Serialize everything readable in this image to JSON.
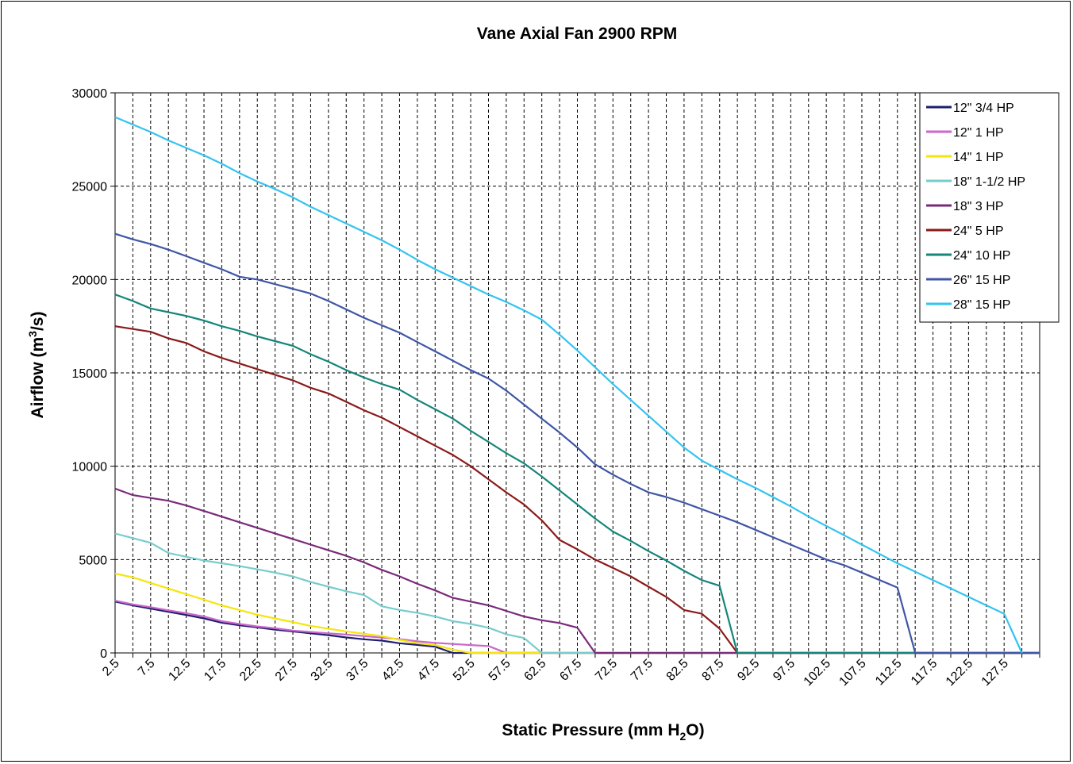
{
  "chart_data": {
    "type": "line",
    "title": "Vane Axial Fan 2900 RPM",
    "xlabel": {
      "prefix": "Static Pressure (mm H",
      "sub": "2",
      "suffix": "O)"
    },
    "ylabel": {
      "prefix": "Airflow (m",
      "sup": "3",
      "suffix": "/s)"
    },
    "ylim": [
      0,
      30000
    ],
    "y_ticks": [
      "0",
      "5000",
      "10000",
      "15000",
      "20000",
      "25000",
      "30000"
    ],
    "x_tick_labels": [
      "2.5",
      "7.5",
      "12.5",
      "17.5",
      "22.5",
      "27.5",
      "32.5",
      "37.5",
      "42.5",
      "47.5",
      "52.5",
      "57.5",
      "62.5",
      "67.5",
      "72.5",
      "77.5",
      "82.5",
      "87.5",
      "92.5",
      "97.5",
      "102.5",
      "107.5",
      "112.5",
      "117.5",
      "122.5",
      "127.5"
    ],
    "xlim": [
      2.5,
      132.5
    ],
    "grid": true,
    "legend_position": "top-right",
    "series": [
      {
        "name": "12\" 3/4 HP",
        "color": "#1f1f6e",
        "x": [
          2.5,
          5,
          7.5,
          10,
          12.5,
          15,
          17.5,
          20,
          22.5,
          25,
          27.5,
          30,
          32.5,
          35,
          37.5,
          40,
          42.5,
          45,
          47.5,
          50,
          132.5
        ],
        "y": [
          2750,
          2550,
          2370,
          2200,
          2030,
          1850,
          1620,
          1480,
          1370,
          1250,
          1150,
          1050,
          950,
          830,
          730,
          660,
          520,
          430,
          330,
          0,
          0
        ]
      },
      {
        "name": "12\" 1 HP",
        "color": "#cc66cc",
        "x": [
          2.5,
          5,
          7.5,
          10,
          12.5,
          15,
          17.5,
          20,
          22.5,
          25,
          27.5,
          30,
          32.5,
          35,
          37.5,
          40,
          42.5,
          45,
          47.5,
          50,
          52.5,
          55,
          57.5,
          132.5
        ],
        "y": [
          2800,
          2600,
          2450,
          2280,
          2130,
          1950,
          1700,
          1550,
          1420,
          1320,
          1200,
          1120,
          1050,
          980,
          900,
          820,
          740,
          620,
          540,
          480,
          420,
          370,
          0,
          0
        ]
      },
      {
        "name": "14\" 1 HP",
        "color": "#f5e60a",
        "x": [
          2.5,
          5,
          7.5,
          10,
          12.5,
          15,
          17.5,
          20,
          22.5,
          25,
          27.5,
          30,
          32.5,
          35,
          37.5,
          40,
          42.5,
          45,
          47.5,
          50,
          52.5,
          132.5
        ],
        "y": [
          4250,
          4050,
          3750,
          3450,
          3150,
          2850,
          2550,
          2300,
          2050,
          1850,
          1650,
          1450,
          1300,
          1150,
          1030,
          900,
          700,
          520,
          420,
          180,
          0,
          0
        ]
      },
      {
        "name": "18\" 1-1/2 HP",
        "color": "#77cccc",
        "x": [
          2.5,
          5,
          7.5,
          10,
          12.5,
          15,
          17.5,
          20,
          22.5,
          25,
          27.5,
          30,
          32.5,
          35,
          37.5,
          40,
          42.5,
          45,
          47.5,
          50,
          52.5,
          55,
          57.5,
          60,
          62.5,
          132.5
        ],
        "y": [
          6400,
          6150,
          5900,
          5350,
          5150,
          4950,
          4800,
          4650,
          4480,
          4300,
          4100,
          3800,
          3550,
          3300,
          3100,
          2500,
          2300,
          2150,
          1950,
          1700,
          1550,
          1350,
          1000,
          800,
          0,
          0
        ]
      },
      {
        "name": "18\" 3 HP",
        "color": "#7a2a7a",
        "x": [
          2.5,
          5,
          7.5,
          10,
          12.5,
          15,
          17.5,
          20,
          22.5,
          25,
          27.5,
          30,
          32.5,
          35,
          37.5,
          40,
          42.5,
          45,
          47.5,
          50,
          52.5,
          55,
          57.5,
          60,
          62.5,
          65,
          67.5,
          70,
          132.5
        ],
        "y": [
          8800,
          8450,
          8300,
          8150,
          7900,
          7600,
          7300,
          7000,
          6700,
          6400,
          6100,
          5800,
          5500,
          5200,
          4850,
          4450,
          4100,
          3700,
          3350,
          2950,
          2750,
          2550,
          2250,
          1950,
          1750,
          1600,
          1350,
          0,
          0
        ]
      },
      {
        "name": "24\" 5 HP",
        "color": "#8b1a1a",
        "x": [
          2.5,
          5,
          7.5,
          10,
          12.5,
          15,
          17.5,
          20,
          22.5,
          25,
          27.5,
          30,
          32.5,
          35,
          37.5,
          40,
          42.5,
          45,
          47.5,
          50,
          52.5,
          55,
          57.5,
          60,
          62.5,
          65,
          67.5,
          70,
          72.5,
          75,
          77.5,
          80,
          82.5,
          85,
          87.5,
          90,
          132.5
        ],
        "y": [
          17500,
          17350,
          17200,
          16850,
          16600,
          16150,
          15800,
          15500,
          15200,
          14900,
          14600,
          14200,
          13900,
          13450,
          13000,
          12600,
          12100,
          11600,
          11100,
          10600,
          10000,
          9300,
          8600,
          7950,
          7100,
          6050,
          5550,
          5000,
          4550,
          4100,
          3550,
          3000,
          2300,
          2100,
          1300,
          0,
          0
        ]
      },
      {
        "name": "24\" 10 HP",
        "color": "#14867a",
        "x": [
          2.5,
          5,
          7.5,
          10,
          12.5,
          15,
          17.5,
          20,
          22.5,
          25,
          27.5,
          30,
          32.5,
          35,
          37.5,
          40,
          42.5,
          45,
          47.5,
          50,
          52.5,
          55,
          57.5,
          60,
          62.5,
          65,
          67.5,
          70,
          72.5,
          75,
          77.5,
          80,
          82.5,
          85,
          87.5,
          90,
          92.5,
          132.5
        ],
        "y": [
          19200,
          18850,
          18450,
          18250,
          18050,
          17800,
          17500,
          17250,
          16950,
          16700,
          16450,
          16000,
          15600,
          15150,
          14750,
          14400,
          14100,
          13550,
          13050,
          12550,
          11900,
          11300,
          10700,
          10150,
          9450,
          8700,
          7950,
          7200,
          6500,
          6000,
          5450,
          4950,
          4400,
          3900,
          3600,
          0,
          0,
          0
        ]
      },
      {
        "name": "26\" 15 HP",
        "color": "#3f56a6",
        "x": [
          2.5,
          5,
          7.5,
          10,
          12.5,
          15,
          17.5,
          20,
          22.5,
          25,
          27.5,
          30,
          32.5,
          35,
          37.5,
          40,
          42.5,
          45,
          47.5,
          50,
          52.5,
          55,
          57.5,
          60,
          62.5,
          65,
          67.5,
          70,
          72.5,
          75,
          77.5,
          80,
          82.5,
          85,
          87.5,
          90,
          92.5,
          95,
          97.5,
          100,
          102.5,
          105,
          107.5,
          110,
          112.5,
          115,
          132.5
        ],
        "y": [
          22450,
          22150,
          21900,
          21600,
          21250,
          20900,
          20550,
          20150,
          20000,
          19750,
          19500,
          19250,
          18850,
          18400,
          17950,
          17550,
          17150,
          16650,
          16150,
          15650,
          15150,
          14700,
          14050,
          13300,
          12550,
          11800,
          11000,
          10100,
          9550,
          9050,
          8600,
          8350,
          8050,
          7700,
          7350,
          7000,
          6600,
          6200,
          5800,
          5400,
          5000,
          4700,
          4300,
          3900,
          3500,
          0,
          0
        ]
      },
      {
        "name": "28\" 15 HP",
        "color": "#33c3f0",
        "x": [
          2.5,
          5,
          7.5,
          10,
          12.5,
          15,
          17.5,
          20,
          22.5,
          25,
          27.5,
          30,
          32.5,
          35,
          37.5,
          40,
          42.5,
          45,
          47.5,
          50,
          52.5,
          55,
          57.5,
          60,
          62.5,
          65,
          67.5,
          70,
          72.5,
          75,
          77.5,
          80,
          82.5,
          85,
          87.5,
          90,
          92.5,
          95,
          97.5,
          100,
          102.5,
          105,
          107.5,
          110,
          112.5,
          115,
          117.5,
          120,
          122.5,
          125,
          127.5,
          130
        ],
        "y": [
          28700,
          28300,
          27900,
          27450,
          27050,
          26650,
          26200,
          25700,
          25250,
          24850,
          24400,
          23900,
          23450,
          23000,
          22550,
          22100,
          21600,
          21050,
          20550,
          20100,
          19650,
          19200,
          18800,
          18350,
          17850,
          17050,
          16200,
          15300,
          14400,
          13550,
          12700,
          11850,
          11000,
          10300,
          9800,
          9300,
          8850,
          8350,
          7850,
          7300,
          6800,
          6300,
          5800,
          5300,
          4800,
          4350,
          3900,
          3450,
          3000,
          2550,
          2100,
          0
        ]
      }
    ]
  }
}
